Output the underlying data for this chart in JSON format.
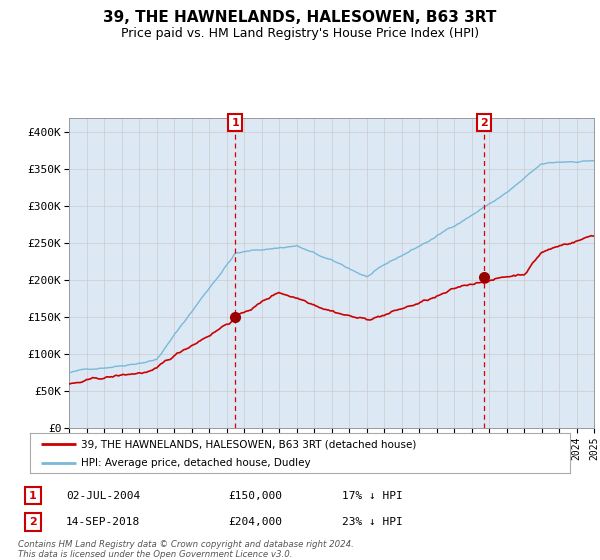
{
  "title": "39, THE HAWNELANDS, HALESOWEN, B63 3RT",
  "subtitle": "Price paid vs. HM Land Registry's House Price Index (HPI)",
  "title_fontsize": 11,
  "subtitle_fontsize": 9,
  "bg_color": "#dce9f5",
  "outer_bg_color": "#ffffff",
  "grid_color": "#cccccc",
  "hpi_color": "#7ab8d9",
  "price_color": "#cc0000",
  "marker_color": "#990000",
  "vline_color": "#dd0000",
  "annotation_box_color": "#cc0000",
  "legend_label_price": "39, THE HAWNELANDS, HALESOWEN, B63 3RT (detached house)",
  "legend_label_hpi": "HPI: Average price, detached house, Dudley",
  "sale1_date": "02-JUL-2004",
  "sale1_price": 150000,
  "sale1_label": "1",
  "sale1_hpi_pct": "17% ↓ HPI",
  "sale2_date": "14-SEP-2018",
  "sale2_price": 204000,
  "sale2_label": "2",
  "sale2_hpi_pct": "23% ↓ HPI",
  "footer": "Contains HM Land Registry data © Crown copyright and database right 2024.\nThis data is licensed under the Open Government Licence v3.0.",
  "ylim": [
    0,
    420000
  ],
  "yticks": [
    0,
    50000,
    100000,
    150000,
    200000,
    250000,
    300000,
    350000,
    400000
  ],
  "ytick_labels": [
    "£0",
    "£50K",
    "£100K",
    "£150K",
    "£200K",
    "£250K",
    "£300K",
    "£350K",
    "£400K"
  ],
  "sale1_x": 2004.5,
  "sale2_x": 2018.7
}
